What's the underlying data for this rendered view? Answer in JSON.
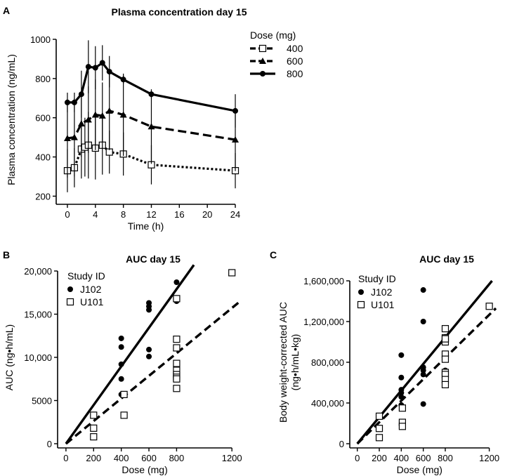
{
  "chart_data": [
    {
      "id": "A",
      "type": "line",
      "panel_label": "A",
      "title": "Plasma concentration day 15",
      "xlabel": "Time (h)",
      "ylabel": "Plasma concentration (ng/mL)",
      "xlim": [
        -1,
        24.5
      ],
      "ylim": [
        180,
        1000
      ],
      "xticks": [
        0,
        4,
        8,
        12,
        16,
        20,
        24
      ],
      "yticks": [
        200,
        400,
        600,
        800,
        1000
      ],
      "legend_title": "Dose (mg)",
      "legend_position": "top-right",
      "series": [
        {
          "name": "400",
          "marker": "open-square",
          "line_style": "dotted",
          "points": [
            {
              "x": 0,
              "y": 330,
              "err": 110
            },
            {
              "x": 1,
              "y": 345,
              "err": 100
            },
            {
              "x": 2,
              "y": 440,
              "err": 150
            },
            {
              "x": 2.5,
              "y": 450,
              "err": 150
            },
            {
              "x": 3,
              "y": 460,
              "err": 170
            },
            {
              "x": 4,
              "y": 445,
              "err": 160
            },
            {
              "x": 5,
              "y": 460,
              "err": 150
            },
            {
              "x": 6,
              "y": 425,
              "err": 110
            },
            {
              "x": 8,
              "y": 415,
              "err": 110
            },
            {
              "x": 12,
              "y": 360,
              "err": 100
            },
            {
              "x": 24,
              "y": 330,
              "err": 90
            }
          ]
        },
        {
          "name": "600",
          "marker": "filled-triangle",
          "line_style": "dashed",
          "points": [
            {
              "x": 0,
              "y": 495,
              "err": 200
            },
            {
              "x": 1,
              "y": 500,
              "err": 200
            },
            {
              "x": 2,
              "y": 570,
              "err": 170
            },
            {
              "x": 3,
              "y": 590,
              "err": 170
            },
            {
              "x": 4,
              "y": 615,
              "err": 180
            },
            {
              "x": 5,
              "y": 610,
              "err": 170
            },
            {
              "x": 6,
              "y": 635,
              "err": 200
            },
            {
              "x": 8,
              "y": 615,
              "err": 210
            },
            {
              "x": 12,
              "y": 555,
              "err": 190
            },
            {
              "x": 24,
              "y": 488,
              "err": 160
            }
          ]
        },
        {
          "name": "800",
          "marker": "filled-circle",
          "line_style": "solid",
          "points": [
            {
              "x": 0,
              "y": 678,
              "err": 50
            },
            {
              "x": 1,
              "y": 678,
              "err": 50
            },
            {
              "x": 2,
              "y": 720,
              "err": 120
            },
            {
              "x": 3,
              "y": 860,
              "err": 135
            },
            {
              "x": 4,
              "y": 855,
              "err": 110
            },
            {
              "x": 5,
              "y": 880,
              "err": 90
            },
            {
              "x": 6,
              "y": 835,
              "err": 80
            },
            {
              "x": 8,
              "y": 795,
              "err": 20
            },
            {
              "x": 12,
              "y": 720,
              "err": 20
            },
            {
              "x": 24,
              "y": 635,
              "err": 85
            }
          ]
        }
      ]
    },
    {
      "id": "B",
      "type": "scatter",
      "panel_label": "B",
      "title": "AUC day 15",
      "xlabel": "Dose (mg)",
      "ylabel": "AUC (ng•h/mL)",
      "xlim": [
        -30,
        1260
      ],
      "ylim": [
        0,
        20000
      ],
      "xticks": [
        0,
        200,
        400,
        600,
        800,
        1200
      ],
      "yticks": [
        0,
        5000,
        10000,
        15000,
        20000
      ],
      "ytick_labels": [
        "0",
        "5000",
        "10,000",
        "15,000",
        "20,000"
      ],
      "legend_title": "Study ID",
      "legend_position": "top-left",
      "series": [
        {
          "name": "J102",
          "marker": "filled-circle",
          "x": [
            400,
            400,
            400,
            400,
            400,
            600,
            600,
            600,
            600,
            600,
            800,
            800
          ],
          "y": [
            12200,
            11200,
            9200,
            7500,
            5700,
            16300,
            15900,
            15500,
            10900,
            10100,
            18700,
            16500
          ]
        },
        {
          "name": "U101",
          "marker": "open-square",
          "x": [
            200,
            200,
            200,
            420,
            420,
            800,
            800,
            800,
            800,
            800,
            800,
            800,
            800,
            800,
            1200
          ],
          "y": [
            3300,
            1800,
            800,
            5700,
            3300,
            16800,
            12100,
            11100,
            9300,
            8500,
            8000,
            7700,
            7500,
            6400,
            19800
          ]
        }
      ],
      "fit_lines": [
        {
          "series": "J102",
          "style": "solid",
          "x": [
            0,
            925
          ],
          "y": [
            0,
            20700
          ]
        },
        {
          "series": "U101",
          "style": "dashed",
          "x": [
            0,
            1260
          ],
          "y": [
            0,
            16500
          ]
        }
      ]
    },
    {
      "id": "C",
      "type": "scatter",
      "panel_label": "C",
      "title": "AUC day 15",
      "xlabel": "Dose (mg)",
      "ylabel": "Body weight-corrected AUC",
      "ylabel_units": "(ng•h/mL•kg)",
      "xlim": [
        -30,
        1260
      ],
      "ylim": [
        0,
        1600000
      ],
      "xticks": [
        0,
        200,
        400,
        600,
        800,
        1200
      ],
      "yticks": [
        0,
        400000,
        800000,
        1200000,
        1600000
      ],
      "ytick_labels": [
        "0",
        "400,000",
        "800,000",
        "1,200,000",
        "1,600,000"
      ],
      "legend_title": "Study ID",
      "legend_position": "top-left",
      "series": [
        {
          "name": "J102",
          "marker": "filled-circle",
          "x": [
            400,
            400,
            400,
            400,
            400,
            400,
            600,
            600,
            600,
            600,
            600,
            600,
            800,
            800
          ],
          "y": [
            870000,
            650000,
            530000,
            500000,
            460000,
            380000,
            1510000,
            1200000,
            750000,
            720000,
            680000,
            390000,
            1050000,
            720000
          ]
        },
        {
          "name": "U101",
          "marker": "open-square",
          "x": [
            200,
            200,
            200,
            410,
            410,
            410,
            800,
            800,
            800,
            800,
            800,
            800,
            800,
            800,
            800,
            800,
            1200
          ],
          "y": [
            270000,
            150000,
            60000,
            350000,
            210000,
            170000,
            1130000,
            1040000,
            1000000,
            880000,
            830000,
            700000,
            680000,
            630000,
            580000,
            1030000,
            1350000
          ]
        }
      ],
      "fit_lines": [
        {
          "series": "J102",
          "style": "solid",
          "x": [
            0,
            1225
          ],
          "y": [
            0,
            1600000
          ]
        },
        {
          "series": "U101",
          "style": "dashed",
          "x": [
            0,
            1260
          ],
          "y": [
            0,
            1330000
          ]
        }
      ]
    }
  ]
}
